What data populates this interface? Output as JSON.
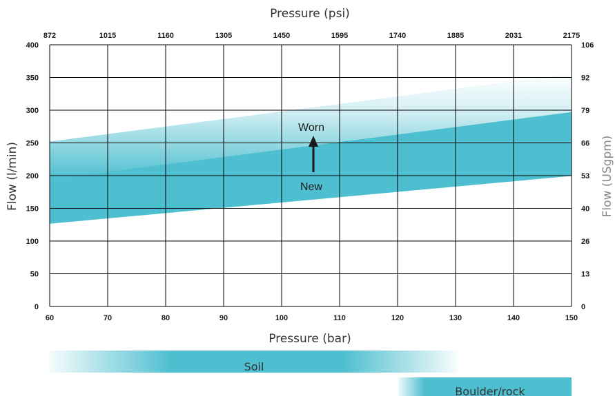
{
  "chart_data": {
    "type": "area",
    "xlabel_bottom": "Pressure (bar)",
    "xlabel_top": "Pressure (psi)",
    "ylabel_left": "Flow (l/min)",
    "ylabel_right": "Flow (USgpm)",
    "x_bottom_ticks": [
      "60",
      "70",
      "80",
      "90",
      "100",
      "110",
      "120",
      "130",
      "140",
      "150"
    ],
    "x_top_ticks": [
      "872",
      "1015",
      "1160",
      "1305",
      "1450",
      "1595",
      "1740",
      "1885",
      "2031",
      "2175"
    ],
    "y_left_ticks": [
      "0",
      "50",
      "100",
      "150",
      "200",
      "250",
      "300",
      "350",
      "400"
    ],
    "y_right_ticks": [
      "0",
      "13",
      "26",
      "40",
      "53",
      "66",
      "79",
      "92",
      "106"
    ],
    "xlim": [
      60,
      150
    ],
    "ylim": [
      0,
      400
    ],
    "grid": true,
    "series": [
      {
        "name": "New",
        "x": [
          60,
          150
        ],
        "y": [
          127,
          200
        ]
      },
      {
        "name": "Worn",
        "x": [
          60,
          150
        ],
        "y": [
          252,
          355
        ]
      }
    ],
    "annotations": {
      "worn": "Worn",
      "new": "New"
    },
    "pressure_ranges": [
      {
        "name": "Soil",
        "x": [
          60,
          130
        ]
      },
      {
        "name": "Boulder/rock",
        "x": [
          120,
          150
        ]
      }
    ],
    "colors": {
      "fill": "#4ebfd0",
      "grid": "#000000"
    }
  }
}
